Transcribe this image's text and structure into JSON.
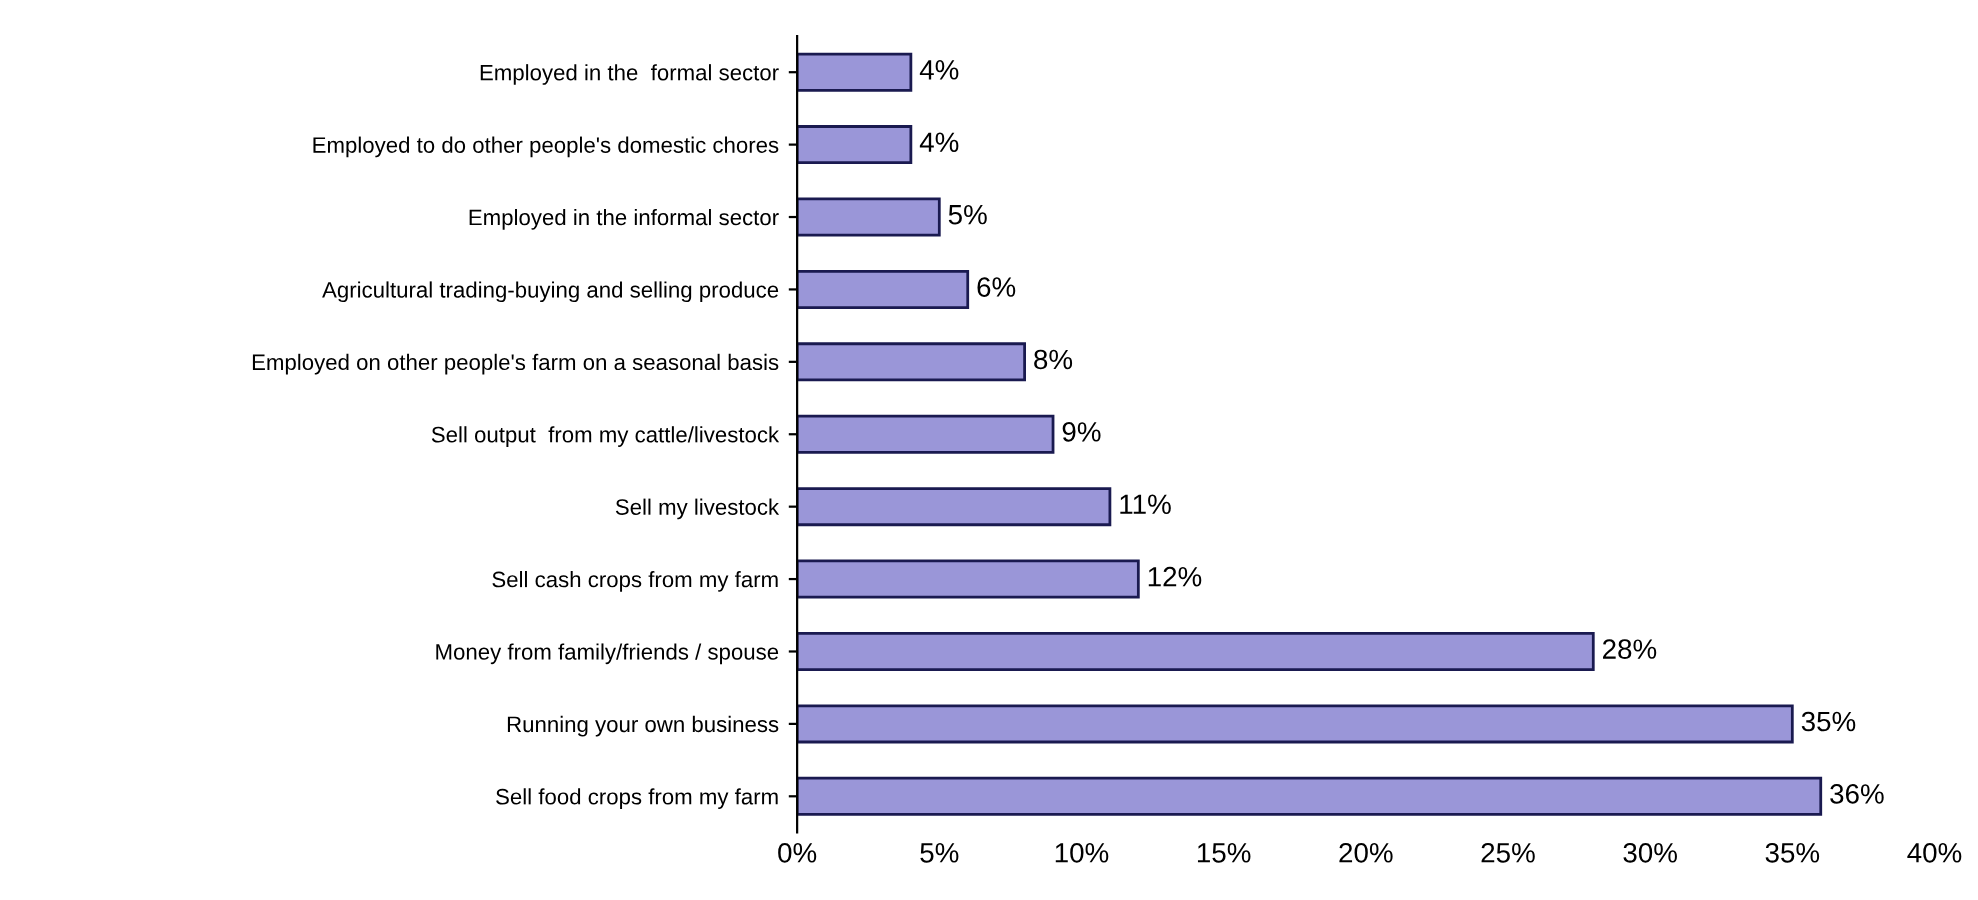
{
  "chart_data": {
    "type": "bar",
    "orientation": "horizontal",
    "categories": [
      "Employed in the  formal sector",
      "Employed to do other people's domestic chores",
      "Employed in the informal sector",
      "Agricultural trading-buying and selling produce",
      "Employed on other people's farm on a seasonal basis",
      "Sell output  from my cattle/livestock",
      "Sell my livestock",
      "Sell cash crops from my farm",
      "Money from family/friends / spouse",
      "Running your own business",
      "Sell food crops from my farm"
    ],
    "values": [
      4,
      4,
      5,
      6,
      8,
      9,
      11,
      12,
      28,
      35,
      36
    ],
    "value_labels": [
      "4%",
      "4%",
      "5%",
      "6%",
      "8%",
      "9%",
      "11%",
      "12%",
      "28%",
      "35%",
      "36%"
    ],
    "color": "#9a96d8",
    "xlim": [
      0,
      40
    ],
    "xticks": [
      {
        "value": 0,
        "label": "0%"
      },
      {
        "value": 5,
        "label": "5%"
      },
      {
        "value": 10,
        "label": "10%"
      },
      {
        "value": 15,
        "label": "15%"
      },
      {
        "value": 20,
        "label": "20%"
      },
      {
        "value": 25,
        "label": "25%"
      },
      {
        "value": 30,
        "label": "30%"
      },
      {
        "value": 35,
        "label": "35%"
      },
      {
        "value": 40,
        "label": "40%"
      }
    ],
    "grid": false,
    "legend": false
  }
}
